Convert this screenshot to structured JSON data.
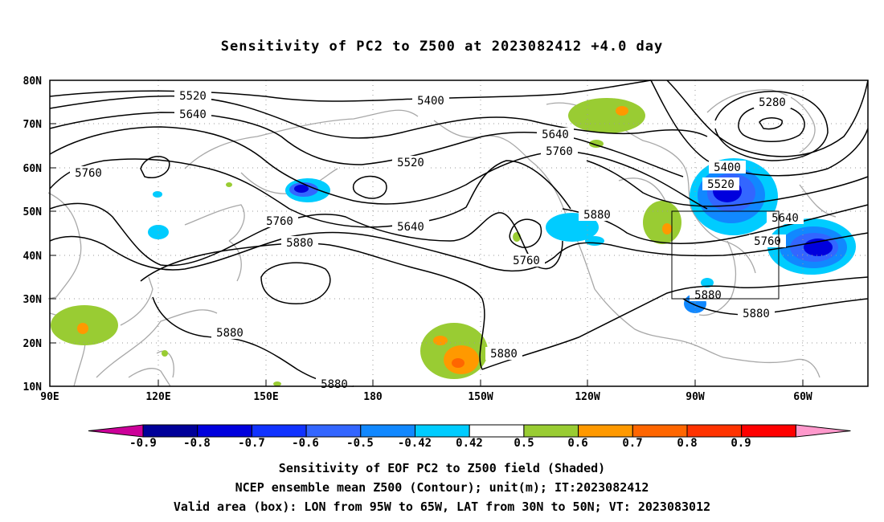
{
  "title": "Sensitivity of PC2 to Z500 at 2023082412 +4.0 day",
  "map": {
    "lat_labels": [
      "80N",
      "70N",
      "60N",
      "50N",
      "40N",
      "30N",
      "20N",
      "10N"
    ],
    "lon_labels": [
      "90E",
      "120E",
      "150E",
      "180",
      "150W",
      "120W",
      "90W",
      "60W"
    ],
    "box": {
      "lon_from": "95W",
      "lon_to": "65W",
      "lat_from": "30N",
      "lat_to": "50N"
    }
  },
  "contour_labels": [
    "5520",
    "5400",
    "5280",
    "5640",
    "5640",
    "5520",
    "5760",
    "5400",
    "5520",
    "5760",
    "5640",
    "5880",
    "5640",
    "5760",
    "5760",
    "5880",
    "5760",
    "5880",
    "5880",
    "5880",
    "5880",
    "5880"
  ],
  "colorbar": {
    "labels": [
      "-0.9",
      "-0.8",
      "-0.7",
      "-0.6",
      "-0.5",
      "-0.42",
      "0.42",
      "0.5",
      "0.6",
      "0.7",
      "0.8",
      "0.9"
    ],
    "colors": [
      "#cc0099",
      "#000099",
      "#0000dd",
      "#1133ff",
      "#3366ff",
      "#1188ff",
      "#00ccff",
      "#ffffff",
      "#99cc33",
      "#ff9900",
      "#ff6600",
      "#ff3300",
      "#ff0000",
      "#ff99cc"
    ]
  },
  "footer": {
    "line1": "Sensitivity of EOF PC2 to Z500 field (Shaded)",
    "line2": "NCEP ensemble mean Z500 (Contour); unit(m); IT:2023082412",
    "line3": "Valid area (box): LON from 95W to 65W, LAT from 30N to 50N; VT: 2023083012"
  }
}
